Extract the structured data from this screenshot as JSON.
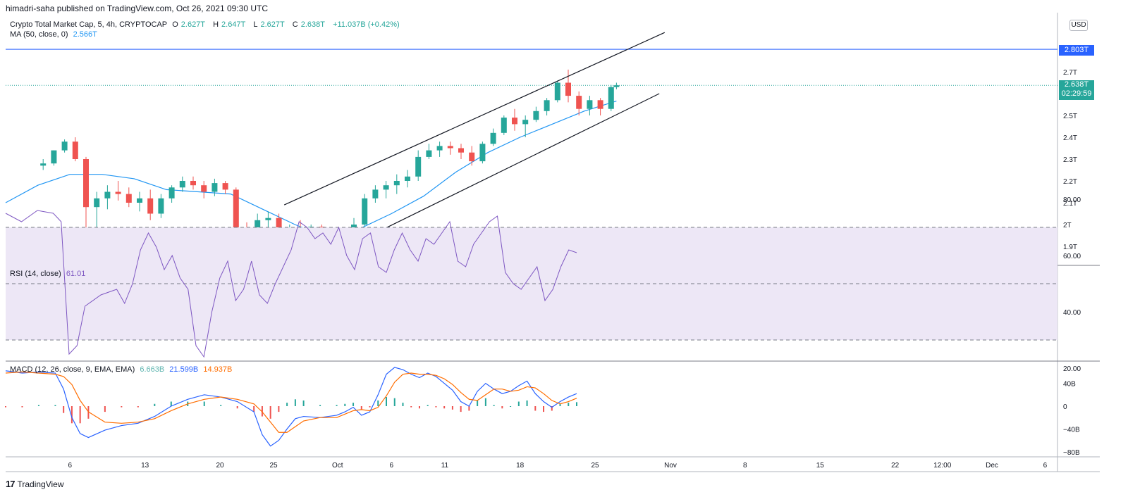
{
  "header": {
    "published": "himadri-saha published on TradingView.com, Oct 26, 2021 09:30 UTC"
  },
  "price_legend": {
    "title": "Crypto Total Market Cap, 5, 4h, CRYPTOCAP",
    "o_label": "O",
    "o_value": "2.627T",
    "h_label": "H",
    "h_value": "2.647T",
    "l_label": "L",
    "l_value": "2.627T",
    "c_label": "C",
    "c_value": "2.638T",
    "change": "+11.037B (+0.42%)",
    "ma_label": "MA (50, close, 0)",
    "ma_value": "2.566T"
  },
  "rsi_legend": {
    "label": "RSI (14, close)",
    "value": "61.01"
  },
  "macd_legend": {
    "label": "MACD (12, 26, close, 9, EMA, EMA)",
    "hist": "6.663B",
    "macd": "21.599B",
    "signal": "14.937B"
  },
  "axis": {
    "currency": "USD",
    "price_ticks": [
      {
        "label": "2.",
        "v": 2.8
      },
      {
        "label": "2.7T",
        "v": 2.7
      },
      {
        "label": "2.5T",
        "v": 2.5
      },
      {
        "label": "2.4T",
        "v": 2.4
      },
      {
        "label": "2.3T",
        "v": 2.3
      },
      {
        "label": "2.2T",
        "v": 2.2
      },
      {
        "label": "2.1T",
        "v": 2.1
      },
      {
        "label": "2T",
        "v": 2.0
      },
      {
        "label": "1.9T",
        "v": 1.9
      }
    ],
    "rsi_ticks": [
      {
        "label": "80.00",
        "v": 80
      },
      {
        "label": "60.00",
        "v": 60
      },
      {
        "label": "40.00",
        "v": 40
      },
      {
        "label": "20.00",
        "v": 20
      }
    ],
    "macd_ticks": [
      {
        "label": "40B",
        "v": 40
      },
      {
        "label": "0",
        "v": 0
      },
      {
        "label": "−40B",
        "v": -40
      },
      {
        "label": "−80B",
        "v": -80
      }
    ],
    "x_ticks": [
      {
        "label": "6",
        "day": 6
      },
      {
        "label": "13",
        "day": 13
      },
      {
        "label": "20",
        "day": 20
      },
      {
        "label": "25",
        "day": 25
      },
      {
        "label": "Oct",
        "day": 31
      },
      {
        "label": "6",
        "day": 36
      },
      {
        "label": "11",
        "day": 41
      },
      {
        "label": "18",
        "day": 48
      },
      {
        "label": "25",
        "day": 55
      },
      {
        "label": "Nov",
        "day": 62
      },
      {
        "label": "8",
        "day": 69
      },
      {
        "label": "15",
        "day": 76
      },
      {
        "label": "22",
        "day": 83
      },
      {
        "label": "12:00",
        "day": 87.5
      },
      {
        "label": "Dec",
        "day": 92
      },
      {
        "label": "6",
        "day": 97
      }
    ]
  },
  "markers": {
    "resistance_label": "2.803T",
    "resistance_value": 2.803,
    "last_price_label": "2.638T",
    "last_price_value": 2.638,
    "countdown": "02:29:59"
  },
  "colors": {
    "up": "#26a69a",
    "down": "#ef5350",
    "ma": "#2196f3",
    "resistance": "#2962ff",
    "rsi": "#7e57c2",
    "rsi_band": "#ede7f6",
    "macd": "#2962ff",
    "signal": "#ff6d00",
    "hist_up": "#26a69a",
    "hist_down": "#ef5350"
  },
  "chart_data": {
    "type": "candlestick",
    "series_name": "Crypto Total Market Cap",
    "x_unit": "days since Sep 1 2021 (Oct 1 = 31)",
    "ohlc_daily": [
      {
        "d": 3.5,
        "o": 2.27,
        "h": 2.3,
        "l": 2.25,
        "c": 2.28
      },
      {
        "d": 4.5,
        "o": 2.28,
        "h": 2.34,
        "l": 2.27,
        "c": 2.34
      },
      {
        "d": 5.5,
        "o": 2.34,
        "h": 2.39,
        "l": 2.33,
        "c": 2.38
      },
      {
        "d": 6.5,
        "o": 2.38,
        "h": 2.4,
        "l": 2.29,
        "c": 2.3
      },
      {
        "d": 7.5,
        "o": 2.3,
        "h": 2.31,
        "l": 1.87,
        "c": 2.08
      },
      {
        "d": 8.5,
        "o": 2.08,
        "h": 2.15,
        "l": 1.96,
        "c": 2.12
      },
      {
        "d": 9.5,
        "o": 2.12,
        "h": 2.18,
        "l": 2.07,
        "c": 2.15
      },
      {
        "d": 10.5,
        "o": 2.15,
        "h": 2.2,
        "l": 2.11,
        "c": 2.14
      },
      {
        "d": 11.5,
        "o": 2.14,
        "h": 2.17,
        "l": 2.08,
        "c": 2.1
      },
      {
        "d": 12.5,
        "o": 2.1,
        "h": 2.15,
        "l": 2.06,
        "c": 2.12
      },
      {
        "d": 13.5,
        "o": 2.12,
        "h": 2.16,
        "l": 2.02,
        "c": 2.05
      },
      {
        "d": 14.5,
        "o": 2.05,
        "h": 2.14,
        "l": 2.03,
        "c": 2.12
      },
      {
        "d": 15.5,
        "o": 2.12,
        "h": 2.18,
        "l": 2.1,
        "c": 2.17
      },
      {
        "d": 16.5,
        "o": 2.17,
        "h": 2.22,
        "l": 2.15,
        "c": 2.2
      },
      {
        "d": 17.5,
        "o": 2.2,
        "h": 2.22,
        "l": 2.16,
        "c": 2.18
      },
      {
        "d": 18.5,
        "o": 2.18,
        "h": 2.2,
        "l": 2.12,
        "c": 2.15
      },
      {
        "d": 19.5,
        "o": 2.15,
        "h": 2.21,
        "l": 2.13,
        "c": 2.19
      },
      {
        "d": 20.5,
        "o": 2.19,
        "h": 2.2,
        "l": 2.14,
        "c": 2.16
      },
      {
        "d": 21.5,
        "o": 2.16,
        "h": 2.17,
        "l": 1.9,
        "c": 1.95
      },
      {
        "d": 22.5,
        "o": 1.95,
        "h": 2.01,
        "l": 1.86,
        "c": 1.92
      },
      {
        "d": 23.5,
        "o": 1.92,
        "h": 2.05,
        "l": 1.83,
        "c": 2.02
      },
      {
        "d": 24.5,
        "o": 2.02,
        "h": 2.06,
        "l": 1.97,
        "c": 2.03
      },
      {
        "d": 25.5,
        "o": 2.03,
        "h": 2.05,
        "l": 1.93,
        "c": 1.96
      },
      {
        "d": 26.5,
        "o": 1.96,
        "h": 2.0,
        "l": 1.9,
        "c": 1.98
      },
      {
        "d": 27.5,
        "o": 1.98,
        "h": 2.02,
        "l": 1.85,
        "c": 1.88
      },
      {
        "d": 28.5,
        "o": 1.88,
        "h": 2.0,
        "l": 1.85,
        "c": 1.99
      },
      {
        "d": 29.5,
        "o": 1.99,
        "h": 2.0,
        "l": 1.9,
        "c": 1.93
      },
      {
        "d": 30.5,
        "o": 1.93,
        "h": 1.97,
        "l": 1.86,
        "c": 1.9
      },
      {
        "d": 31.5,
        "o": 1.9,
        "h": 1.98,
        "l": 1.84,
        "c": 1.95
      },
      {
        "d": 32.5,
        "o": 1.95,
        "h": 2.03,
        "l": 1.93,
        "c": 2.0
      },
      {
        "d": 33.5,
        "o": 2.0,
        "h": 2.14,
        "l": 1.99,
        "c": 2.12
      },
      {
        "d": 34.5,
        "o": 2.12,
        "h": 2.18,
        "l": 2.1,
        "c": 2.16
      },
      {
        "d": 35.5,
        "o": 2.16,
        "h": 2.2,
        "l": 2.12,
        "c": 2.18
      },
      {
        "d": 36.5,
        "o": 2.18,
        "h": 2.23,
        "l": 2.14,
        "c": 2.2
      },
      {
        "d": 37.5,
        "o": 2.2,
        "h": 2.25,
        "l": 2.17,
        "c": 2.22
      },
      {
        "d": 38.5,
        "o": 2.22,
        "h": 2.34,
        "l": 2.2,
        "c": 2.31
      },
      {
        "d": 39.5,
        "o": 2.31,
        "h": 2.37,
        "l": 2.3,
        "c": 2.34
      },
      {
        "d": 40.5,
        "o": 2.34,
        "h": 2.38,
        "l": 2.31,
        "c": 2.36
      },
      {
        "d": 41.5,
        "o": 2.36,
        "h": 2.38,
        "l": 2.32,
        "c": 2.35
      },
      {
        "d": 42.5,
        "o": 2.35,
        "h": 2.37,
        "l": 2.3,
        "c": 2.33
      },
      {
        "d": 43.5,
        "o": 2.33,
        "h": 2.36,
        "l": 2.27,
        "c": 2.29
      },
      {
        "d": 44.5,
        "o": 2.29,
        "h": 2.38,
        "l": 2.28,
        "c": 2.37
      },
      {
        "d": 45.5,
        "o": 2.37,
        "h": 2.44,
        "l": 2.36,
        "c": 2.42
      },
      {
        "d": 46.5,
        "o": 2.42,
        "h": 2.5,
        "l": 2.41,
        "c": 2.49
      },
      {
        "d": 47.5,
        "o": 2.49,
        "h": 2.53,
        "l": 2.43,
        "c": 2.46
      },
      {
        "d": 48.5,
        "o": 2.46,
        "h": 2.5,
        "l": 2.4,
        "c": 2.48
      },
      {
        "d": 49.5,
        "o": 2.48,
        "h": 2.54,
        "l": 2.47,
        "c": 2.52
      },
      {
        "d": 50.5,
        "o": 2.52,
        "h": 2.58,
        "l": 2.5,
        "c": 2.57
      },
      {
        "d": 51.5,
        "o": 2.57,
        "h": 2.66,
        "l": 2.56,
        "c": 2.65
      },
      {
        "d": 52.5,
        "o": 2.65,
        "h": 2.71,
        "l": 2.56,
        "c": 2.59
      },
      {
        "d": 53.5,
        "o": 2.59,
        "h": 2.61,
        "l": 2.5,
        "c": 2.53
      },
      {
        "d": 54.5,
        "o": 2.53,
        "h": 2.59,
        "l": 2.5,
        "c": 2.57
      },
      {
        "d": 55.5,
        "o": 2.57,
        "h": 2.58,
        "l": 2.5,
        "c": 2.53
      },
      {
        "d": 56.5,
        "o": 2.53,
        "h": 2.64,
        "l": 2.52,
        "c": 2.63
      },
      {
        "d": 57.0,
        "o": 2.63,
        "h": 2.65,
        "l": 2.62,
        "c": 2.638
      }
    ],
    "ma50": [
      {
        "d": 0,
        "v": 2.1
      },
      {
        "d": 3,
        "v": 2.18
      },
      {
        "d": 6,
        "v": 2.23
      },
      {
        "d": 9,
        "v": 2.23
      },
      {
        "d": 12,
        "v": 2.21
      },
      {
        "d": 15,
        "v": 2.16
      },
      {
        "d": 18,
        "v": 2.15
      },
      {
        "d": 21,
        "v": 2.14
      },
      {
        "d": 24,
        "v": 2.07
      },
      {
        "d": 27,
        "v": 2.0
      },
      {
        "d": 29,
        "v": 1.96
      },
      {
        "d": 31,
        "v": 1.96
      },
      {
        "d": 33,
        "v": 1.98
      },
      {
        "d": 36,
        "v": 2.05
      },
      {
        "d": 39,
        "v": 2.13
      },
      {
        "d": 42,
        "v": 2.24
      },
      {
        "d": 45,
        "v": 2.33
      },
      {
        "d": 48,
        "v": 2.4
      },
      {
        "d": 51,
        "v": 2.46
      },
      {
        "d": 54,
        "v": 2.52
      },
      {
        "d": 57,
        "v": 2.566
      }
    ],
    "channel_upper": {
      "from": {
        "d": 26,
        "v": 2.09
      },
      "to": {
        "d": 61.5,
        "v": 2.88
      }
    },
    "channel_lower": {
      "from": {
        "d": 29.5,
        "v": 1.84
      },
      "to": {
        "d": 61,
        "v": 2.6
      }
    },
    "rsi": [
      {
        "d": 0,
        "v": 75
      },
      {
        "d": 2,
        "v": 72
      },
      {
        "d": 4,
        "v": 76
      },
      {
        "d": 6,
        "v": 75
      },
      {
        "d": 7,
        "v": 72
      },
      {
        "d": 8,
        "v": 25
      },
      {
        "d": 9,
        "v": 28
      },
      {
        "d": 10,
        "v": 42
      },
      {
        "d": 12,
        "v": 46
      },
      {
        "d": 14,
        "v": 48
      },
      {
        "d": 15,
        "v": 43
      },
      {
        "d": 16,
        "v": 50
      },
      {
        "d": 17,
        "v": 62
      },
      {
        "d": 18,
        "v": 68
      },
      {
        "d": 19,
        "v": 63
      },
      {
        "d": 20,
        "v": 55
      },
      {
        "d": 21,
        "v": 60
      },
      {
        "d": 22,
        "v": 52
      },
      {
        "d": 23,
        "v": 48
      },
      {
        "d": 24,
        "v": 28
      },
      {
        "d": 25,
        "v": 24
      },
      {
        "d": 26,
        "v": 40
      },
      {
        "d": 27,
        "v": 52
      },
      {
        "d": 28,
        "v": 58
      },
      {
        "d": 29,
        "v": 44
      },
      {
        "d": 30,
        "v": 48
      },
      {
        "d": 31,
        "v": 58
      },
      {
        "d": 32,
        "v": 46
      },
      {
        "d": 33,
        "v": 43
      },
      {
        "d": 34,
        "v": 50
      },
      {
        "d": 35,
        "v": 56
      },
      {
        "d": 36,
        "v": 62
      },
      {
        "d": 37,
        "v": 72
      },
      {
        "d": 38,
        "v": 70
      },
      {
        "d": 39,
        "v": 66
      },
      {
        "d": 40,
        "v": 68
      },
      {
        "d": 41,
        "v": 64
      },
      {
        "d": 42,
        "v": 70
      },
      {
        "d": 43,
        "v": 60
      },
      {
        "d": 44,
        "v": 55
      },
      {
        "d": 45,
        "v": 66
      },
      {
        "d": 46,
        "v": 68
      },
      {
        "d": 47,
        "v": 56
      },
      {
        "d": 48,
        "v": 54
      },
      {
        "d": 49,
        "v": 62
      },
      {
        "d": 50,
        "v": 68
      },
      {
        "d": 51,
        "v": 62
      },
      {
        "d": 52,
        "v": 58
      },
      {
        "d": 53,
        "v": 66
      },
      {
        "d": 54,
        "v": 64
      },
      {
        "d": 55,
        "v": 68
      },
      {
        "d": 56,
        "v": 72
      },
      {
        "d": 57,
        "v": 58
      },
      {
        "d": 58,
        "v": 56
      },
      {
        "d": 59,
        "v": 64
      },
      {
        "d": 60,
        "v": 68
      },
      {
        "d": 61,
        "v": 72
      },
      {
        "d": 62,
        "v": 74
      },
      {
        "d": 63,
        "v": 54
      },
      {
        "d": 64,
        "v": 50
      },
      {
        "d": 65,
        "v": 48
      },
      {
        "d": 66,
        "v": 52
      },
      {
        "d": 67,
        "v": 56
      },
      {
        "d": 68,
        "v": 44
      },
      {
        "d": 69,
        "v": 48
      },
      {
        "d": 70,
        "v": 56
      },
      {
        "d": 71,
        "v": 62
      },
      {
        "d": 72,
        "v": 61
      }
    ],
    "macd": [
      {
        "d": 0,
        "m": 62,
        "s": 58,
        "h": -2
      },
      {
        "d": 2,
        "m": 58,
        "s": 60,
        "h": -2
      },
      {
        "d": 4,
        "m": 60,
        "s": 58,
        "h": 2
      },
      {
        "d": 6,
        "m": 58,
        "s": 56,
        "h": 2
      },
      {
        "d": 7,
        "m": 30,
        "s": 52,
        "h": -12
      },
      {
        "d": 8,
        "m": -20,
        "s": 38,
        "h": -30
      },
      {
        "d": 9,
        "m": -48,
        "s": 10,
        "h": -30
      },
      {
        "d": 10,
        "m": -55,
        "s": -10,
        "h": -22
      },
      {
        "d": 12,
        "m": -42,
        "s": -28,
        "h": -10
      },
      {
        "d": 14,
        "m": -34,
        "s": -30,
        "h": -2
      },
      {
        "d": 16,
        "m": -30,
        "s": -28,
        "h": -2
      },
      {
        "d": 18,
        "m": -18,
        "s": -22,
        "h": 4
      },
      {
        "d": 20,
        "m": 0,
        "s": -8,
        "h": 8
      },
      {
        "d": 22,
        "m": 12,
        "s": 4,
        "h": 8
      },
      {
        "d": 24,
        "m": 20,
        "s": 12,
        "h": 8
      },
      {
        "d": 26,
        "m": 16,
        "s": 16,
        "h": 2
      },
      {
        "d": 28,
        "m": 8,
        "s": 12,
        "h": -4
      },
      {
        "d": 30,
        "m": -10,
        "s": 4,
        "h": -10
      },
      {
        "d": 31,
        "m": -50,
        "s": -10,
        "h": -18
      },
      {
        "d": 32,
        "m": -70,
        "s": -28,
        "h": -22
      },
      {
        "d": 33,
        "m": -60,
        "s": -46,
        "h": -10
      },
      {
        "d": 34,
        "m": -40,
        "s": -46,
        "h": 6
      },
      {
        "d": 35,
        "m": -22,
        "s": -36,
        "h": 12
      },
      {
        "d": 36,
        "m": -18,
        "s": -26,
        "h": 10
      },
      {
        "d": 38,
        "m": -20,
        "s": -20,
        "h": 2
      },
      {
        "d": 40,
        "m": -16,
        "s": -20,
        "h": 2
      },
      {
        "d": 41,
        "m": -10,
        "s": -14,
        "h": 4
      },
      {
        "d": 42,
        "m": -2,
        "s": -8,
        "h": 6
      },
      {
        "d": 43,
        "m": -16,
        "s": -6,
        "h": -6
      },
      {
        "d": 44,
        "m": -10,
        "s": -8,
        "h": -2
      },
      {
        "d": 45,
        "m": 20,
        "s": -2,
        "h": 10
      },
      {
        "d": 46,
        "m": 56,
        "s": 18,
        "h": 16
      },
      {
        "d": 47,
        "m": 68,
        "s": 42,
        "h": 14
      },
      {
        "d": 48,
        "m": 64,
        "s": 56,
        "h": 6
      },
      {
        "d": 49,
        "m": 56,
        "s": 58,
        "h": -2
      },
      {
        "d": 50,
        "m": 50,
        "s": 56,
        "h": -4
      },
      {
        "d": 51,
        "m": 58,
        "s": 56,
        "h": 2
      },
      {
        "d": 52,
        "m": 52,
        "s": 54,
        "h": -2
      },
      {
        "d": 53,
        "m": 40,
        "s": 48,
        "h": -4
      },
      {
        "d": 54,
        "m": 28,
        "s": 38,
        "h": -6
      },
      {
        "d": 55,
        "m": 8,
        "s": 24,
        "h": -10
      },
      {
        "d": 56,
        "m": 0,
        "s": 12,
        "h": -8
      },
      {
        "d": 57,
        "m": 26,
        "s": 10,
        "h": 10
      },
      {
        "d": 58,
        "m": 40,
        "s": 20,
        "h": 14
      },
      {
        "d": 59,
        "m": 30,
        "s": 30,
        "h": 2
      },
      {
        "d": 60,
        "m": 22,
        "s": 30,
        "h": -4
      },
      {
        "d": 61,
        "m": 26,
        "s": 26,
        "h": 0
      },
      {
        "d": 62,
        "m": 36,
        "s": 28,
        "h": 8
      },
      {
        "d": 63,
        "m": 44,
        "s": 34,
        "h": 10
      },
      {
        "d": 64,
        "m": 22,
        "s": 32,
        "h": -8
      },
      {
        "d": 65,
        "m": 8,
        "s": 22,
        "h": -10
      },
      {
        "d": 66,
        "m": -2,
        "s": 10,
        "h": -8
      },
      {
        "d": 67,
        "m": 8,
        "s": 4,
        "h": 4
      },
      {
        "d": 68,
        "m": 16,
        "s": 8,
        "h": 6
      },
      {
        "d": 69,
        "m": 22,
        "s": 14,
        "h": 7
      }
    ]
  }
}
